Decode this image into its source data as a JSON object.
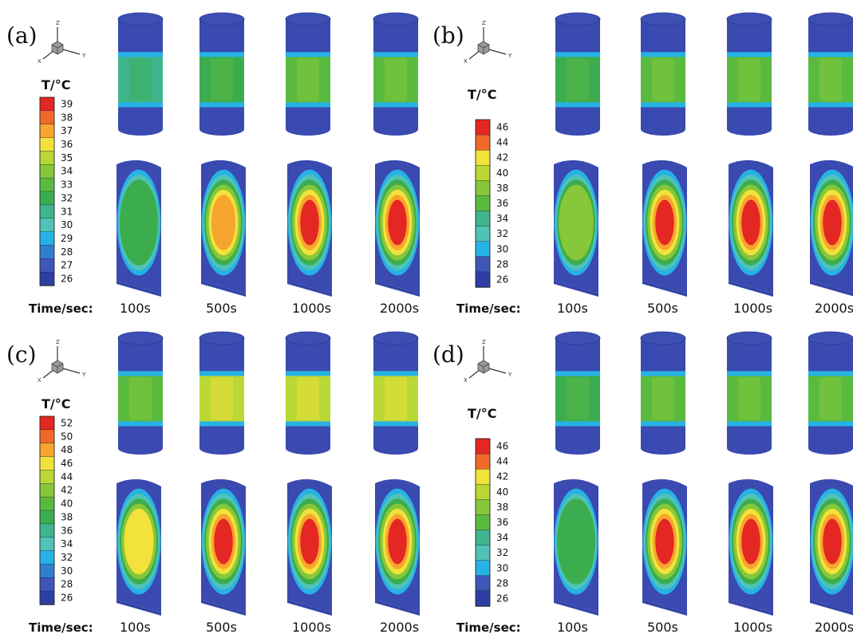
{
  "colors": {
    "scale": [
      "#2d3fa5",
      "#3e56b8",
      "#2f7fd0",
      "#27b2e6",
      "#50c3b8",
      "#3fb58e",
      "#3cad4f",
      "#5aba3f",
      "#86c83a",
      "#b9d735",
      "#f2e23b",
      "#f6a62c",
      "#f0692b",
      "#e42722"
    ],
    "cap_top": "#3d4fb3",
    "cap_side": "#3a4ab0"
  },
  "figure": {
    "time_label": "Time/sec:",
    "times": [
      "100s",
      "500s",
      "1000s",
      "2000s"
    ],
    "panels": [
      {
        "letter": "(a)",
        "temp_title": "T/°C",
        "ticks": [
          "39",
          "38",
          "37",
          "36",
          "35",
          "34",
          "33",
          "32",
          "31",
          "30",
          "29",
          "28",
          "27",
          "26"
        ],
        "band_color_index": [
          5,
          6,
          7,
          7
        ],
        "core_level": [
          2,
          5,
          6,
          6
        ]
      },
      {
        "letter": "(b)",
        "temp_title": "T/°C",
        "ticks": [
          "46",
          "44",
          "42",
          "40",
          "38",
          "36",
          "34",
          "32",
          "30",
          "28",
          "26"
        ],
        "band_color_index": [
          6,
          7,
          7,
          7
        ],
        "core_level": [
          3,
          6,
          6,
          6
        ]
      },
      {
        "letter": "(c)",
        "temp_title": "T/°C",
        "ticks": [
          "52",
          "50",
          "48",
          "46",
          "44",
          "42",
          "40",
          "38",
          "36",
          "34",
          "32",
          "30",
          "28",
          "26"
        ],
        "band_color_index": [
          7,
          9,
          9,
          9
        ],
        "core_level": [
          4,
          6,
          6,
          6
        ]
      },
      {
        "letter": "(d)",
        "temp_title": "T/°C",
        "ticks": [
          "46",
          "44",
          "42",
          "40",
          "38",
          "36",
          "34",
          "32",
          "30",
          "28",
          "26"
        ],
        "band_color_index": [
          6,
          7,
          7,
          7
        ],
        "core_level": [
          2,
          6,
          6,
          6
        ]
      }
    ]
  }
}
